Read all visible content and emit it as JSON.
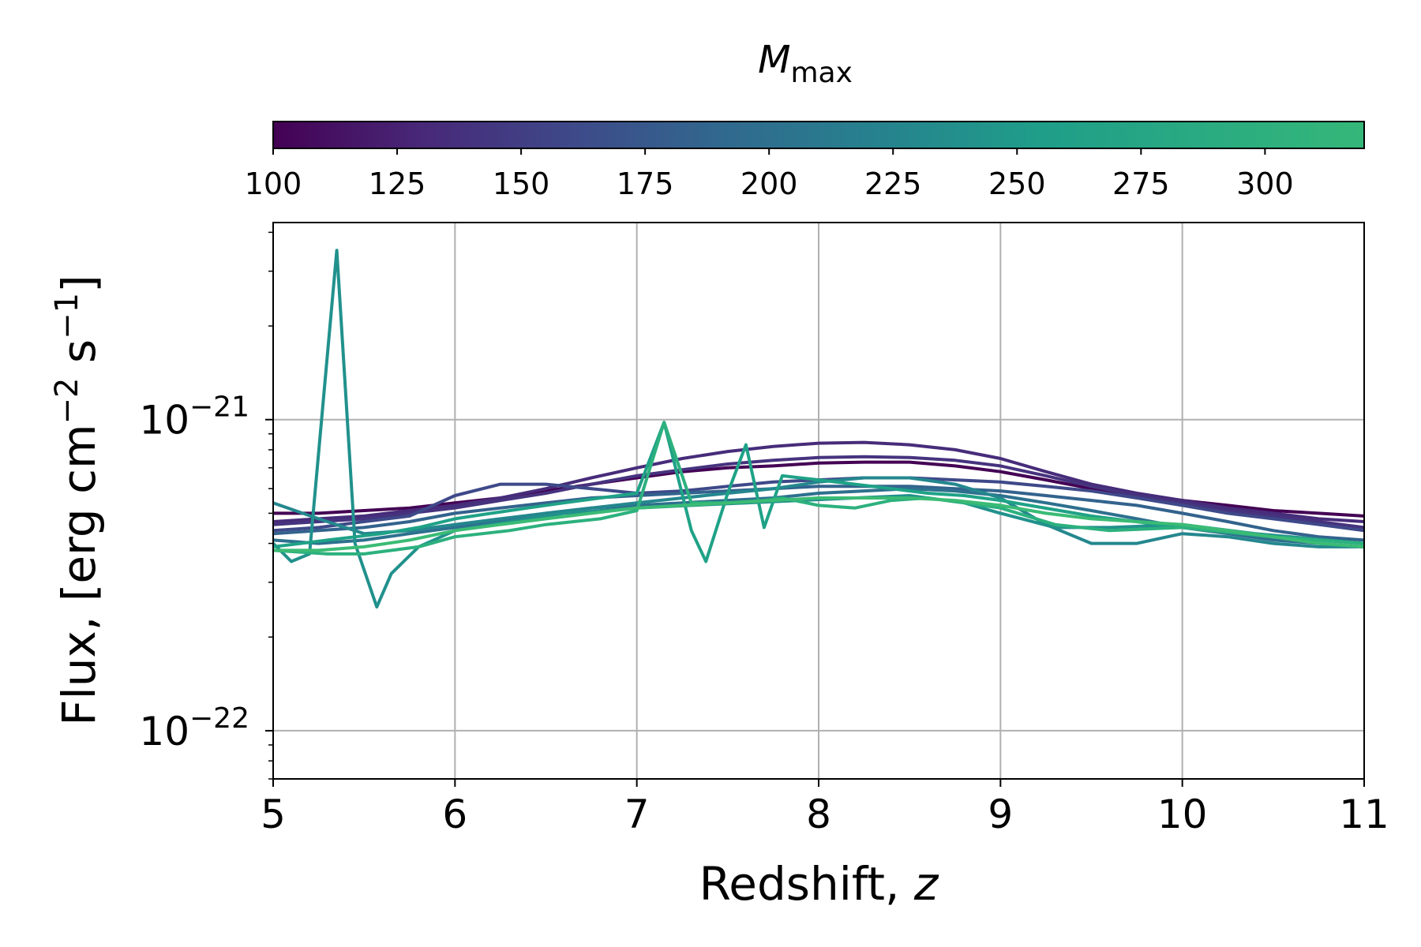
{
  "chart_data": {
    "type": "line",
    "title": "",
    "xlabel": "Redshift, z",
    "ylabel": "Flux, [erg cm^-2 s^-1]",
    "ylabel_parts": {
      "main": "Flux, [erg cm",
      "exp1": "−2",
      "mid": " s",
      "exp2": "−1",
      "end": "]"
    },
    "xlim": [
      5,
      11
    ],
    "ylim": [
      7e-23,
      4.3e-21
    ],
    "yscale": "log",
    "grid": true,
    "x_ticks": [
      "5",
      "6",
      "7",
      "8",
      "9",
      "10",
      "11"
    ],
    "y_ticks": [
      {
        "base": "10",
        "exp": "−22",
        "value": 1e-22
      },
      {
        "base": "10",
        "exp": "−21",
        "value": 1e-21
      }
    ],
    "colorbar": {
      "label_main": "M",
      "label_sub": "max",
      "range": [
        100,
        320
      ],
      "ticks": [
        "100",
        "125",
        "150",
        "175",
        "200",
        "225",
        "250",
        "275",
        "300"
      ],
      "tick_values": [
        100,
        125,
        150,
        175,
        200,
        225,
        250,
        275,
        300
      ],
      "colormap": "viridis",
      "colormap_stops": [
        "#440154",
        "#482878",
        "#3e4989",
        "#31688e",
        "#26828e",
        "#1f9e89",
        "#35b779"
      ],
      "colormap_stop_values": [
        100,
        130,
        160,
        190,
        222,
        255,
        320
      ]
    },
    "x": [
      5.0,
      5.25,
      5.5,
      5.75,
      6.0,
      6.25,
      6.5,
      6.75,
      7.0,
      7.25,
      7.5,
      7.75,
      8.0,
      8.25,
      8.5,
      8.75,
      9.0,
      9.25,
      9.5,
      9.75,
      10.0,
      10.25,
      10.5,
      10.75,
      11.0
    ],
    "series": [
      {
        "mmax": 105,
        "color": "#440154",
        "values": [
          5e-22,
          5e-22,
          5.1e-22,
          5.2e-22,
          5.4e-22,
          5.6e-22,
          5.9e-22,
          6.2e-22,
          6.5e-22,
          6.8e-22,
          7e-22,
          7.1e-22,
          7.25e-22,
          7.3e-22,
          7.3e-22,
          7.1e-22,
          6.8e-22,
          6.4e-22,
          6e-22,
          5.7e-22,
          5.5e-22,
          5.3e-22,
          5.1e-22,
          5e-22,
          4.9e-22
        ]
      },
      {
        "mmax": 125,
        "color": "#472c7a",
        "values": [
          4.7e-22,
          4.8e-22,
          4.9e-22,
          5.1e-22,
          5.3e-22,
          5.6e-22,
          6e-22,
          6.5e-22,
          7e-22,
          7.5e-22,
          7.9e-22,
          8.2e-22,
          8.4e-22,
          8.45e-22,
          8.3e-22,
          8e-22,
          7.5e-22,
          6.8e-22,
          6.2e-22,
          5.8e-22,
          5.5e-22,
          5.2e-22,
          5e-22,
          4.8e-22,
          4.7e-22
        ]
      },
      {
        "mmax": 140,
        "color": "#46337e",
        "values": [
          4.6e-22,
          4.7e-22,
          4.8e-22,
          5e-22,
          5.2e-22,
          5.5e-22,
          5.8e-22,
          6.2e-22,
          6.6e-22,
          6.9e-22,
          7.2e-22,
          7.4e-22,
          7.55e-22,
          7.6e-22,
          7.55e-22,
          7.4e-22,
          7.1e-22,
          6.6e-22,
          6.1e-22,
          5.7e-22,
          5.4e-22,
          5.1e-22,
          4.9e-22,
          4.7e-22,
          4.5e-22
        ]
      },
      {
        "mmax": 160,
        "color": "#3e4989",
        "values": [
          4.4e-22,
          4.5e-22,
          4.7e-22,
          4.9e-22,
          5.7e-22,
          6.2e-22,
          6.2e-22,
          6e-22,
          5.8e-22,
          5.9e-22,
          6.1e-22,
          6.3e-22,
          6.4e-22,
          6.5e-22,
          6.5e-22,
          6.4e-22,
          6.3e-22,
          6.1e-22,
          5.9e-22,
          5.6e-22,
          5.3e-22,
          5e-22,
          4.8e-22,
          4.6e-22,
          4.4e-22
        ]
      },
      {
        "mmax": 185,
        "color": "#33638d",
        "values": [
          4.3e-22,
          4.4e-22,
          4.5e-22,
          4.7e-22,
          5e-22,
          5.2e-22,
          5.4e-22,
          5.6e-22,
          5.7e-22,
          5.8e-22,
          5.9e-22,
          6e-22,
          6.1e-22,
          6.1e-22,
          6.1e-22,
          6e-22,
          5.9e-22,
          5.7e-22,
          5.5e-22,
          5.3e-22,
          5e-22,
          4.7e-22,
          4.4e-22,
          4.2e-22,
          4.1e-22
        ]
      },
      {
        "mmax": 205,
        "color": "#2d708e",
        "values": [
          4.1e-22,
          4e-22,
          4.1e-22,
          4.3e-22,
          4.5e-22,
          4.7e-22,
          5e-22,
          5.2e-22,
          5.3e-22,
          5.4e-22,
          5.5e-22,
          5.6e-22,
          5.8e-22,
          5.9e-22,
          6e-22,
          5.9e-22,
          5.7e-22,
          5.4e-22,
          5.1e-22,
          4.8e-22,
          4.5e-22,
          4.3e-22,
          4.1e-22,
          4e-22,
          3.9e-22
        ]
      },
      {
        "mmax": 220,
        "color": "#24878e",
        "values": [
          5.4e-22,
          4.8e-22,
          4.3e-22,
          4.4e-22,
          4.6e-22,
          4.8e-22,
          5e-22,
          5.2e-22,
          5.4e-22,
          5.6e-22,
          5.8e-22,
          6e-22,
          6.3e-22,
          6.5e-22,
          6.5e-22,
          6.2e-22,
          5.6e-22,
          4.6e-22,
          4e-22,
          4e-22,
          4.3e-22,
          4.2e-22,
          4e-22,
          3.9e-22,
          3.9e-22
        ]
      },
      {
        "mmax": 230,
        "color": "#21918c",
        "x": [
          5.0,
          5.1,
          5.2,
          5.35,
          5.45,
          5.57,
          5.65,
          5.8,
          6.0,
          6.3,
          6.6,
          7.0,
          7.3,
          7.6,
          7.9,
          8.2,
          8.5,
          8.8,
          9.0,
          9.3,
          9.6,
          10.0,
          10.4,
          10.8,
          11.0
        ],
        "values": [
          4e-22,
          3.5e-22,
          3.7e-22,
          3.5e-21,
          4e-22,
          2.5e-22,
          3.2e-22,
          3.9e-22,
          4.4e-22,
          4.7e-22,
          5e-22,
          5.2e-22,
          5.3e-22,
          5.4e-22,
          5.5e-22,
          5.6e-22,
          5.7e-22,
          5.4e-22,
          5e-22,
          4.5e-22,
          4.5e-22,
          4.6e-22,
          4.3e-22,
          4.1e-22,
          4e-22
        ]
      },
      {
        "mmax": 255,
        "color": "#1fa287",
        "x": [
          5.0,
          5.3,
          5.6,
          5.8,
          6.0,
          6.2,
          6.4,
          6.6,
          6.8,
          7.0,
          7.15,
          7.3,
          7.38,
          7.5,
          7.6,
          7.7,
          7.8,
          8.0,
          8.2,
          8.4,
          8.6,
          8.8,
          9.0,
          9.5,
          10.0,
          10.5,
          11.0
        ],
        "values": [
          3.9e-22,
          4.1e-22,
          4.3e-22,
          4.5e-22,
          4.8e-22,
          5e-22,
          5.2e-22,
          5.4e-22,
          5.6e-22,
          5.8e-22,
          9.8e-22,
          4.4e-22,
          3.5e-22,
          5.8e-22,
          8.3e-22,
          4.5e-22,
          6.6e-22,
          6.4e-22,
          6.2e-22,
          6e-22,
          5.8e-22,
          5.7e-22,
          5.5e-22,
          4.9e-22,
          4.5e-22,
          4.2e-22,
          4e-22
        ]
      },
      {
        "mmax": 275,
        "color": "#2cb17e",
        "x": [
          5.0,
          5.3,
          5.5,
          5.8,
          6.0,
          6.3,
          6.5,
          6.8,
          7.0,
          7.15,
          7.3,
          7.5,
          7.7,
          7.8,
          8.0,
          8.2,
          8.4,
          8.6,
          8.8,
          9.0,
          9.3,
          9.6,
          10.0,
          10.5,
          11.0
        ],
        "values": [
          3.8e-22,
          3.7e-22,
          3.7e-22,
          3.9e-22,
          4.2e-22,
          4.4e-22,
          4.6e-22,
          4.8e-22,
          5.1e-22,
          9.8e-22,
          5.4e-22,
          5.4e-22,
          5.5e-22,
          5.6e-22,
          5.3e-22,
          5.2e-22,
          5.5e-22,
          5.6e-22,
          5.4e-22,
          5.2e-22,
          4.6e-22,
          4.4e-22,
          4.5e-22,
          4.2e-22,
          4e-22
        ]
      },
      {
        "mmax": 300,
        "color": "#3bbb75",
        "values": [
          3.8e-22,
          3.8e-22,
          3.9e-22,
          4.1e-22,
          4.4e-22,
          4.6e-22,
          4.8e-22,
          5e-22,
          5.2e-22,
          5.3e-22,
          5.4e-22,
          5.5e-22,
          5.6e-22,
          5.6e-22,
          5.6e-22,
          5.5e-22,
          5.3e-22,
          5e-22,
          4.8e-22,
          4.7e-22,
          4.6e-22,
          4.4e-22,
          4.2e-22,
          4e-22,
          3.9e-22
        ]
      }
    ]
  }
}
